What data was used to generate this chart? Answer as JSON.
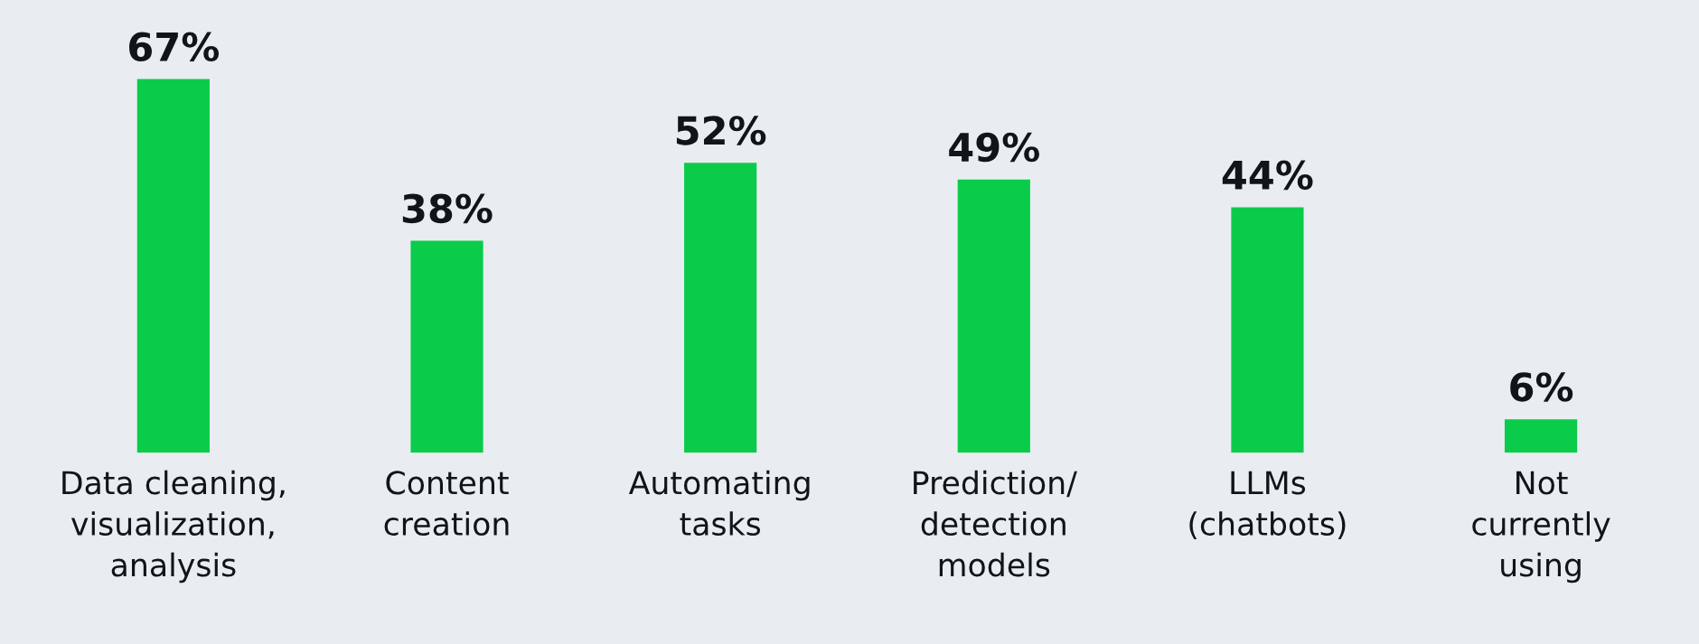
{
  "chart_data": {
    "type": "bar",
    "categories": [
      "Data cleaning,\nvisualization,\nanalysis",
      "Content\ncreation",
      "Automating\ntasks",
      "Prediction/\ndetection\nmodels",
      "LLMs\n(chatbots)",
      "Not\ncurrently\nusing"
    ],
    "values": [
      67,
      38,
      52,
      49,
      44,
      6
    ],
    "value_labels": [
      "67%",
      "38%",
      "52%",
      "49%",
      "44%",
      "6%"
    ],
    "color": "#0bcb4b",
    "grid": false,
    "legend": false
  }
}
